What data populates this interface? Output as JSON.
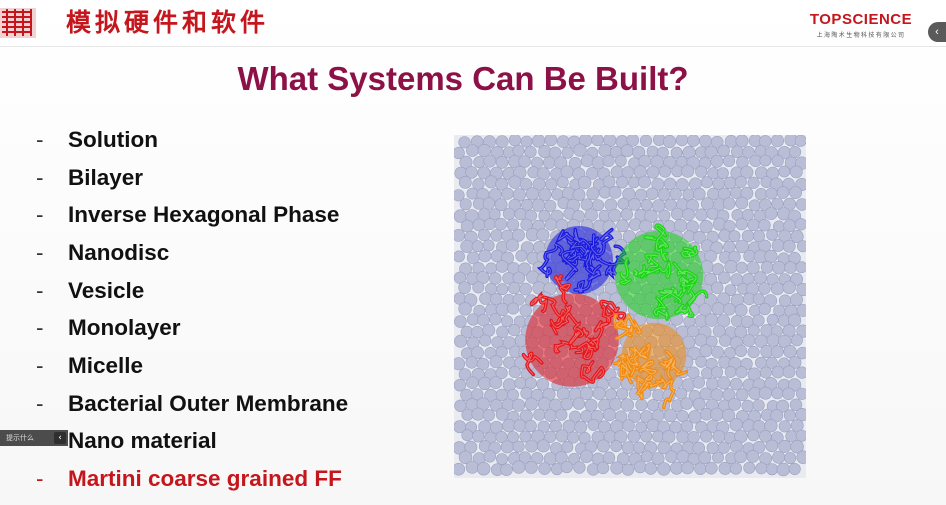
{
  "header": {
    "cn_title": "模拟硬件和软件",
    "brand": {
      "name": "TOPSCIENCE",
      "subtitle": "上海陶术生物科技有限公司",
      "color": "#c4161c"
    }
  },
  "slide": {
    "title": "What Systems Can Be Built?",
    "title_color": "#8c1147",
    "bullet_marker": "-",
    "bullets": [
      {
        "label": "Solution"
      },
      {
        "label": "Bilayer"
      },
      {
        "label": "Inverse Hexagonal Phase"
      },
      {
        "label": "Nanodisc"
      },
      {
        "label": "Vesicle"
      },
      {
        "label": "Monolayer"
      },
      {
        "label": "Micelle"
      },
      {
        "label": "Bacterial Outer Membrane"
      },
      {
        "label": "Nano material"
      },
      {
        "label": "Martini coarse grained FF",
        "highlight": true
      }
    ]
  },
  "figure": {
    "bead_color": "#b9bdd6",
    "protein_colors": [
      "#1a1adc",
      "#19d414",
      "#e4171d",
      "#f08a10"
    ]
  },
  "widgets": {
    "side_panel_text": "提示什么",
    "collapse_left_icon": "‹",
    "collapse_right_icon": "‹"
  }
}
